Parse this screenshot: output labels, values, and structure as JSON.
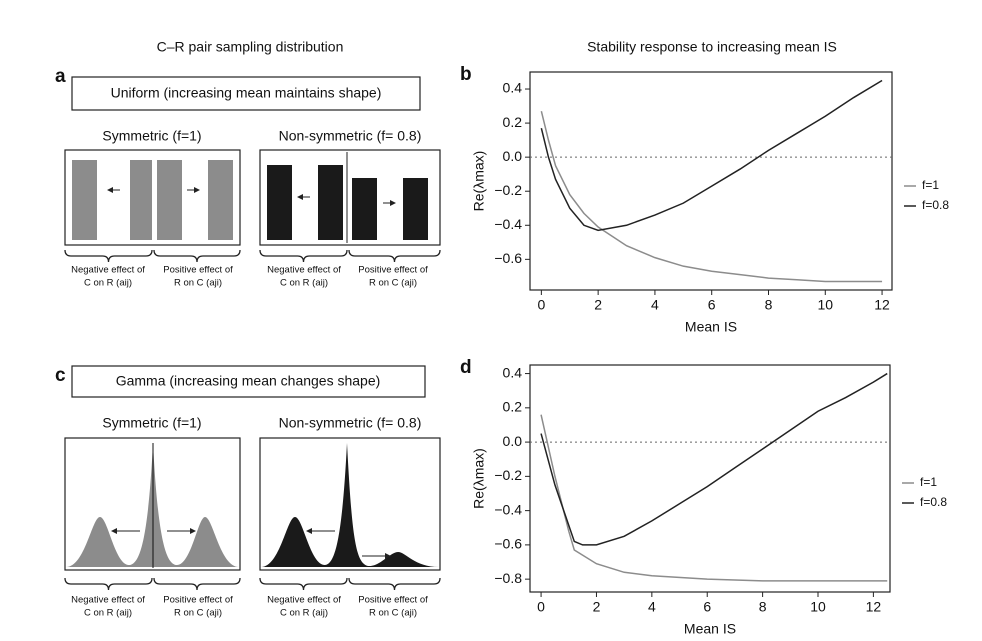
{
  "headers": {
    "left": "C–R pair sampling distribution",
    "right": "Stability response to increasing mean IS"
  },
  "panels": [
    {
      "label": "a",
      "box": "Uniform (increasing mean maintains shape)",
      "left": {
        "title": "Symmetric (f=1)",
        "neg": "Negative effect of",
        "neg2": "C on R (aij)",
        "pos": "Positive effect of",
        "pos2": "R on C (aji)"
      },
      "right": {
        "title": "Non-symmetric (f= 0.8)",
        "neg": "Negative effect of",
        "neg2": "C on R (aij)",
        "pos": "Positive effect of",
        "pos2": "R on C (aji)"
      }
    },
    {
      "label": "c",
      "box": "Gamma (increasing mean changes shape)",
      "left": {
        "title": "Symmetric (f=1)",
        "neg": "Negative effect of",
        "neg2": "C on R (aij)",
        "pos": "Positive effect of",
        "pos2": "R on C (aji)"
      },
      "right": {
        "title": "Non-symmetric (f= 0.8)",
        "neg": "Negative effect of",
        "neg2": "C on R (aij)",
        "pos": "Positive effect of",
        "pos2": "R on C (aji)"
      }
    }
  ],
  "chart_data": [
    {
      "type": "line",
      "label": "b",
      "x_label": "Mean IS",
      "y_label": "Re(λmax)",
      "xlim": [
        -0.4,
        12.35
      ],
      "ylim": [
        -0.78,
        0.5
      ],
      "xticks": [
        0,
        2,
        4,
        6,
        8,
        10,
        12
      ],
      "yticks": [
        {
          "value": -0.6,
          "label": "−0.6"
        },
        {
          "value": -0.4,
          "label": "−0.4"
        },
        {
          "value": -0.2,
          "label": "−0.2"
        },
        {
          "value": 0,
          "label": "0.0"
        },
        0.2,
        0.4
      ],
      "hline": 0,
      "series": [
        {
          "name": "f=1",
          "color": "#8c8c8c",
          "x": [
            0,
            0.25,
            0.5,
            1,
            1.5,
            2,
            3,
            4,
            5,
            6,
            7,
            8,
            9,
            10,
            11,
            12
          ],
          "values": [
            0.27,
            0.1,
            -0.05,
            -0.22,
            -0.33,
            -0.41,
            -0.52,
            -0.59,
            -0.64,
            -0.67,
            -0.69,
            -0.71,
            -0.72,
            -0.73,
            -0.73,
            -0.73
          ]
        },
        {
          "name": "f=0.8",
          "color": "#222222",
          "x": [
            0,
            0.25,
            0.5,
            1,
            1.5,
            2,
            3,
            4,
            5,
            6,
            7,
            8,
            9,
            10,
            11,
            12
          ],
          "values": [
            0.17,
            0.0,
            -0.13,
            -0.3,
            -0.4,
            -0.43,
            -0.4,
            -0.34,
            -0.27,
            -0.17,
            -0.07,
            0.04,
            0.14,
            0.24,
            0.35,
            0.45
          ]
        }
      ]
    },
    {
      "type": "line",
      "label": "d",
      "x_label": "Mean IS",
      "y_label": "Re(λmax)",
      "xlim": [
        -0.4,
        12.6
      ],
      "ylim": [
        -0.875,
        0.45
      ],
      "xticks": [
        0,
        2,
        4,
        6,
        8,
        10,
        12
      ],
      "yticks": [
        {
          "value": -0.8,
          "label": "−0.8"
        },
        {
          "value": -0.6,
          "label": "−0.6"
        },
        {
          "value": -0.4,
          "label": "−0.4"
        },
        {
          "value": -0.2,
          "label": "−0.2"
        },
        {
          "value": 0,
          "label": "0.0"
        },
        0.2,
        0.4
      ],
      "hline": 0,
      "series": [
        {
          "name": "f=1",
          "color": "#8c8c8c",
          "x": [
            0,
            0.5,
            1,
            1.2,
            2,
            3,
            4,
            6,
            8,
            10,
            12.5
          ],
          "values": [
            0.16,
            -0.2,
            -0.52,
            -0.63,
            -0.71,
            -0.76,
            -0.78,
            -0.8,
            -0.81,
            -0.81,
            -0.81
          ]
        },
        {
          "name": "f=0.8",
          "color": "#222222",
          "x": [
            0,
            0.5,
            1.2,
            1.5,
            2,
            3,
            4,
            5,
            6,
            7,
            8,
            9,
            10,
            11,
            12,
            12.5
          ],
          "values": [
            0.05,
            -0.25,
            -0.58,
            -0.6,
            -0.6,
            -0.55,
            -0.46,
            -0.36,
            -0.26,
            -0.15,
            -0.04,
            0.07,
            0.18,
            0.26,
            0.35,
            0.4
          ]
        }
      ]
    }
  ]
}
